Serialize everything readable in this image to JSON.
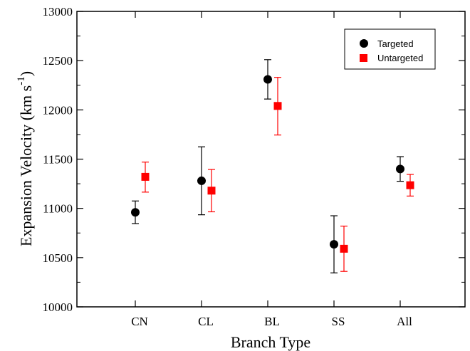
{
  "chart_data": {
    "type": "scatter",
    "title": "",
    "xlabel": "Branch Type",
    "ylabel_main": "Expansion Velocity (km s",
    "ylabel_sup": "-1",
    "ylabel_close": ")",
    "categories": [
      "CN",
      "CL",
      "BL",
      "SS",
      "All"
    ],
    "ylim": [
      10000,
      13000
    ],
    "yticks": [
      10000,
      10500,
      11000,
      11500,
      12000,
      12500,
      13000
    ],
    "grid": false,
    "legend_position": "top-right",
    "series": [
      {
        "name": "Targeted",
        "marker": "circle",
        "color": "#000000",
        "values": [
          10960,
          11280,
          12310,
          10635,
          11400
        ],
        "err_low": [
          10845,
          10935,
          12110,
          10345,
          11275
        ],
        "err_high": [
          11075,
          11625,
          12510,
          10925,
          11525
        ]
      },
      {
        "name": "Untargeted",
        "marker": "square",
        "color": "#ff0000",
        "values": [
          11320,
          11180,
          12040,
          10590,
          11235
        ],
        "err_low": [
          11165,
          10965,
          11745,
          10360,
          11125
        ],
        "err_high": [
          11470,
          11395,
          12330,
          10820,
          11345
        ]
      }
    ]
  }
}
